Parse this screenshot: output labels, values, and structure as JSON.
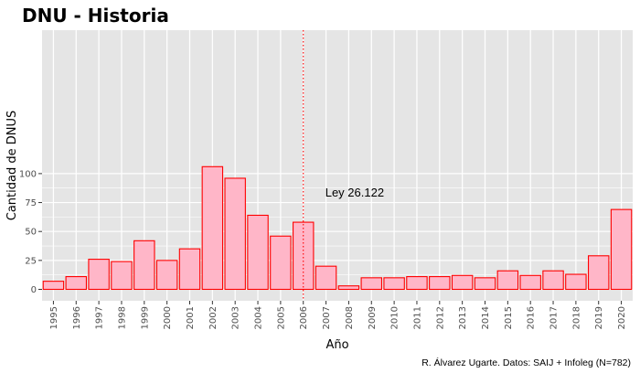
{
  "chart_data": {
    "type": "bar",
    "title": "DNU - Historia",
    "xlabel": "Año",
    "ylabel": "Cantidad de DNUS",
    "categories": [
      "1995",
      "1996",
      "1997",
      "1998",
      "1999",
      "2000",
      "2001",
      "2002",
      "2003",
      "2004",
      "2005",
      "2006",
      "2007",
      "2008",
      "2009",
      "2010",
      "2011",
      "2012",
      "2013",
      "2014",
      "2015",
      "2016",
      "2017",
      "2018",
      "2019",
      "2020"
    ],
    "values": [
      7,
      11,
      26,
      24,
      42,
      25,
      35,
      106,
      96,
      64,
      46,
      58,
      20,
      3,
      10,
      10,
      11,
      11,
      12,
      10,
      16,
      12,
      16,
      13,
      29,
      69
    ],
    "ylim": [
      0,
      111
    ],
    "yticks": [
      0,
      25,
      50,
      75,
      100
    ],
    "grid": true,
    "annotation": {
      "text": "Ley 26.122",
      "x": 2006,
      "y": 84
    },
    "reference_line": {
      "x": 2006,
      "style": "dotted"
    },
    "caption": "R. Álvarez Ugarte. Datos: SAIJ + Infoleg (N=782)",
    "colors": {
      "bar_fill": "#ffb6c8",
      "bar_stroke": "#ff0000",
      "panel": "#e5e5e5",
      "grid": "#ffffff",
      "vline": "#ff0000"
    }
  }
}
